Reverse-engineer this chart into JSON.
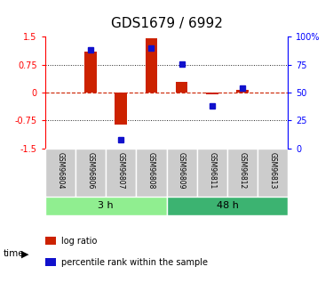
{
  "title": "GDS1679 / 6992",
  "samples": [
    "GSM96804",
    "GSM96806",
    "GSM96807",
    "GSM96808",
    "GSM96809",
    "GSM96811",
    "GSM96812",
    "GSM96813"
  ],
  "log_ratio": [
    0.0,
    1.1,
    -0.85,
    1.45,
    0.3,
    -0.05,
    0.07,
    0.0
  ],
  "percentile_rank": [
    null,
    88,
    8,
    90,
    76,
    38,
    54,
    null
  ],
  "groups": [
    {
      "label": "3 h",
      "start": 0,
      "end": 4,
      "color": "#90ee90"
    },
    {
      "label": "48 h",
      "start": 4,
      "end": 8,
      "color": "#3cb371"
    }
  ],
  "ylim_left": [
    -1.5,
    1.5
  ],
  "ylim_right": [
    0,
    100
  ],
  "yticks_left": [
    -1.5,
    -0.75,
    0.0,
    0.75,
    1.5
  ],
  "yticks_right": [
    0,
    25,
    50,
    75,
    100
  ],
  "yticklabels_left": [
    "-1.5",
    "-0.75",
    "0",
    "0.75",
    "1.5"
  ],
  "yticklabels_right": [
    "0",
    "25",
    "50",
    "75",
    "100%"
  ],
  "bar_color": "#cc2200",
  "dot_color": "#1111cc",
  "hline_color": "#cc2200",
  "grid_color": "#222222",
  "background_color": "#ffffff",
  "bar_width": 0.4,
  "dot_size": 5,
  "legend_items": [
    {
      "color": "#cc2200",
      "label": "log ratio"
    },
    {
      "color": "#1111cc",
      "label": "percentile rank within the sample"
    }
  ]
}
